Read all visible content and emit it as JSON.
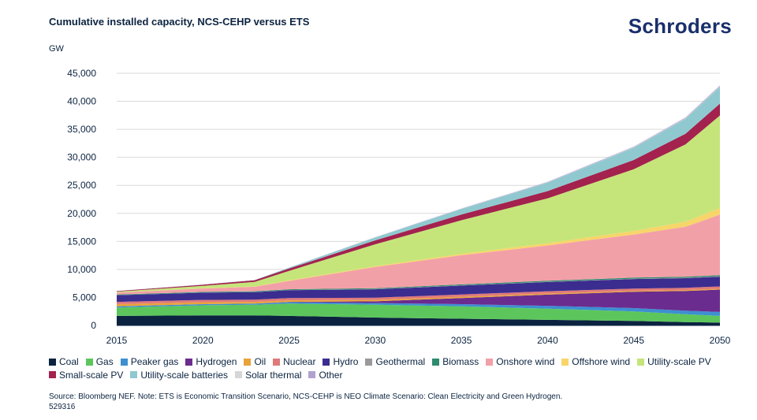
{
  "header": {
    "title": "Cumulative installed capacity, NCS-CEHP versus ETS",
    "logo_text": "Schroders"
  },
  "footer": {
    "source_line1": "Source: Bloomberg NEF. Note: ETS is Economic Transition Scenario, NCS-CEHP is NEO Climate Scenario: Clean Electricity and Green Hydrogen.",
    "source_line2": "529316"
  },
  "chart_data": {
    "type": "area",
    "stacked": true,
    "ylabel": "GW",
    "ylim": [
      0,
      45000
    ],
    "yticks": [
      0,
      5000,
      10000,
      15000,
      20000,
      25000,
      30000,
      35000,
      40000,
      45000
    ],
    "ytick_labels": [
      "0",
      "5,000",
      "10,000",
      "15,000",
      "20,000",
      "25,000",
      "30,000",
      "35,000",
      "40,000",
      "45,000"
    ],
    "xlim": [
      2015,
      2050
    ],
    "xticks": [
      2015,
      2020,
      2025,
      2030,
      2035,
      2040,
      2045,
      2050
    ],
    "x": [
      2015,
      2020,
      2023,
      2025,
      2030,
      2035,
      2040,
      2045,
      2048,
      2050
    ],
    "grid": "horizontal",
    "legend_position": "bottom",
    "series": [
      {
        "name": "Coal",
        "color": "#0b2340",
        "values": [
          1700,
          1800,
          1800,
          1700,
          1400,
          1200,
          1000,
          800,
          600,
          500
        ]
      },
      {
        "name": "Gas",
        "color": "#5cc65c",
        "values": [
          1500,
          1800,
          1900,
          2200,
          2300,
          2200,
          2000,
          1700,
          1400,
          1200
        ]
      },
      {
        "name": "Peaker gas",
        "color": "#3d8fd1",
        "values": [
          200,
          200,
          200,
          250,
          300,
          400,
          500,
          600,
          650,
          700
        ]
      },
      {
        "name": "Hydrogen",
        "color": "#6b2c8f",
        "values": [
          0,
          0,
          0,
          50,
          300,
          1100,
          2000,
          2900,
          3500,
          4000
        ]
      },
      {
        "name": "Oil",
        "color": "#e8a33a",
        "values": [
          400,
          350,
          300,
          280,
          250,
          220,
          200,
          180,
          170,
          160
        ]
      },
      {
        "name": "Nuclear",
        "color": "#e07a7a",
        "values": [
          400,
          400,
          400,
          400,
          400,
          400,
          400,
          400,
          400,
          400
        ]
      },
      {
        "name": "Hydro",
        "color": "#3b2d8f",
        "values": [
          1200,
          1300,
          1350,
          1400,
          1500,
          1600,
          1650,
          1700,
          1720,
          1750
        ]
      },
      {
        "name": "Geothermal",
        "color": "#9a9a9a",
        "values": [
          20,
          20,
          25,
          30,
          40,
          50,
          60,
          70,
          75,
          80
        ]
      },
      {
        "name": "Biomass",
        "color": "#2e8b6e",
        "values": [
          100,
          120,
          130,
          140,
          150,
          160,
          170,
          180,
          185,
          190
        ]
      },
      {
        "name": "Onshore wind",
        "color": "#f2a0a8",
        "values": [
          350,
          600,
          800,
          1500,
          3800,
          5200,
          6300,
          7700,
          8900,
          10800
        ]
      },
      {
        "name": "Offshore wind",
        "color": "#f7d56a",
        "values": [
          10,
          30,
          60,
          100,
          150,
          250,
          400,
          650,
          900,
          1200
        ]
      },
      {
        "name": "Utility-scale PV",
        "color": "#c5e57a",
        "values": [
          150,
          450,
          800,
          1700,
          3900,
          6000,
          8000,
          11000,
          13800,
          16500
        ]
      },
      {
        "name": "Small-scale PV",
        "color": "#a3224e",
        "values": [
          100,
          200,
          300,
          400,
          700,
          1000,
          1300,
          1650,
          1900,
          2100
        ]
      },
      {
        "name": "Utility-scale batteries",
        "color": "#8fc9cf",
        "values": [
          10,
          20,
          40,
          150,
          500,
          1000,
          1500,
          2200,
          2700,
          3000
        ]
      },
      {
        "name": "Solar thermal",
        "color": "#d6d6d6",
        "values": [
          5,
          6,
          7,
          8,
          15,
          30,
          50,
          70,
          80,
          90
        ]
      },
      {
        "name": "Other",
        "color": "#b0a2cf",
        "values": [
          20,
          20,
          20,
          25,
          40,
          60,
          80,
          110,
          130,
          150
        ]
      }
    ]
  }
}
